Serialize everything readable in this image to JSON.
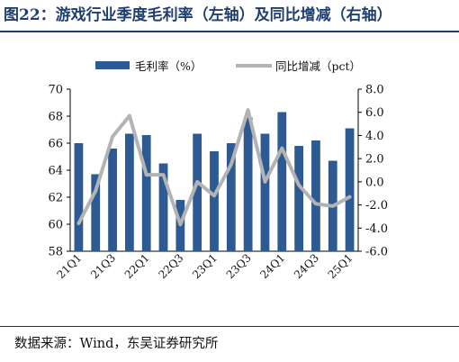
{
  "title": "图22：游戏行业季度毛利率（左轴）及同比增减（右轴）",
  "source": "数据来源：Wind，东吴证券研究所",
  "chart_data": {
    "type": "bar+line",
    "categories": [
      "21Q1",
      "21Q2",
      "21Q3",
      "21Q4",
      "22Q1",
      "22Q2",
      "22Q3",
      "22Q4",
      "23Q1",
      "23Q2",
      "23Q3",
      "23Q4",
      "24Q1",
      "24Q2",
      "24Q3",
      "24Q4",
      "25Q1"
    ],
    "tick_labels": [
      "21Q1",
      "21Q3",
      "22Q1",
      "22Q3",
      "23Q1",
      "23Q3",
      "24Q1",
      "24Q3",
      "25Q1"
    ],
    "series": [
      {
        "name": "毛利率（%）",
        "type": "bar",
        "axis": "left",
        "color": "#2e5a94",
        "values": [
          66.0,
          63.7,
          65.6,
          66.7,
          66.6,
          64.5,
          61.8,
          66.7,
          65.4,
          66.0,
          67.9,
          66.7,
          68.3,
          65.8,
          66.2,
          64.7,
          67.1
        ]
      },
      {
        "name": "同比增减（pct）",
        "type": "line",
        "axis": "right",
        "color": "#b3b3b3",
        "values": [
          -3.6,
          -0.8,
          3.9,
          5.7,
          0.6,
          0.6,
          -3.7,
          0.0,
          -1.2,
          1.5,
          6.2,
          0.0,
          2.9,
          -0.3,
          -1.9,
          -2.1,
          -1.3
        ]
      }
    ],
    "ylim_left": [
      58,
      70
    ],
    "yticks_left": [
      "58",
      "60",
      "62",
      "64",
      "66",
      "68",
      "70"
    ],
    "ylim_right": [
      -6,
      8
    ],
    "yticks_right": [
      "-6.0",
      "-4.0",
      "-2.0",
      "0.0",
      "2.0",
      "4.0",
      "6.0",
      "8.0"
    ],
    "legend_position": "top"
  }
}
